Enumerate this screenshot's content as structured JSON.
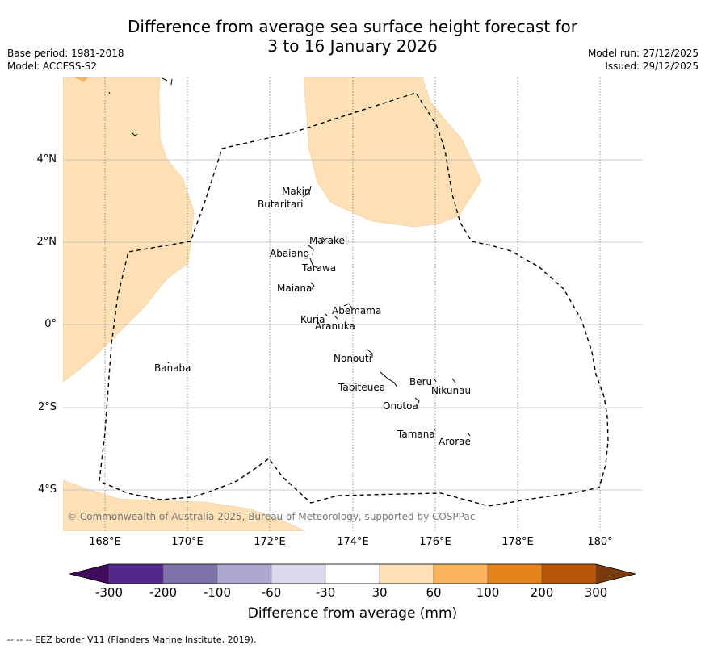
{
  "title_line1": "Difference from average sea surface height forecast for",
  "title_line2": "3 to 16 January 2026",
  "base_period": "Base period: 1981-2018",
  "model": "Model: ACCESS-S2",
  "model_run": "Model run: 27/12/2025",
  "issued": "Issued: 29/12/2025",
  "copyright": "© Commonwealth of Australia 2025, Bureau of Meteorology, supported by COSPPac",
  "lat_labels": [
    "4°N",
    "2°N",
    "0°",
    "2°S",
    "4°S"
  ],
  "lon_labels": [
    "168°E",
    "170°E",
    "172°E",
    "174°E",
    "176°E",
    "178°E",
    "180°"
  ],
  "islands": {
    "makin": "Makin",
    "butaritari": "Butaritari",
    "marakei": "Marakei",
    "abaiang": "Abaiang",
    "tarawa": "Tarawa",
    "maiana": "Maiana",
    "abemama": "Abemama",
    "kuria": "Kuria",
    "aranuka": "Aranuka",
    "nonouti": "Nonouti",
    "banaba": "Banaba",
    "beru": "Beru",
    "nikunau": "Nikunau",
    "tabiteuea": "Tabiteuea",
    "onotoa": "Onotoa",
    "tamana": "Tamana",
    "arorae": "Arorae"
  },
  "colorbar": {
    "title": "Difference from average (mm)",
    "ticks": [
      "-300",
      "-200",
      "-100",
      "-60",
      "-30",
      "30",
      "60",
      "100",
      "200",
      "300"
    ],
    "colors": [
      "#3f0b5a",
      "#54288a",
      "#7f72ab",
      "#aca8d0",
      "#d9d9eb",
      "#ffffff",
      "#fde0b6",
      "#fbb35e",
      "#e2841a",
      "#b45507",
      "#7a3b0c"
    ]
  },
  "eez_note": "--  --  -- EEZ border V11 (Flanders Marine Institute, 2019)."
}
